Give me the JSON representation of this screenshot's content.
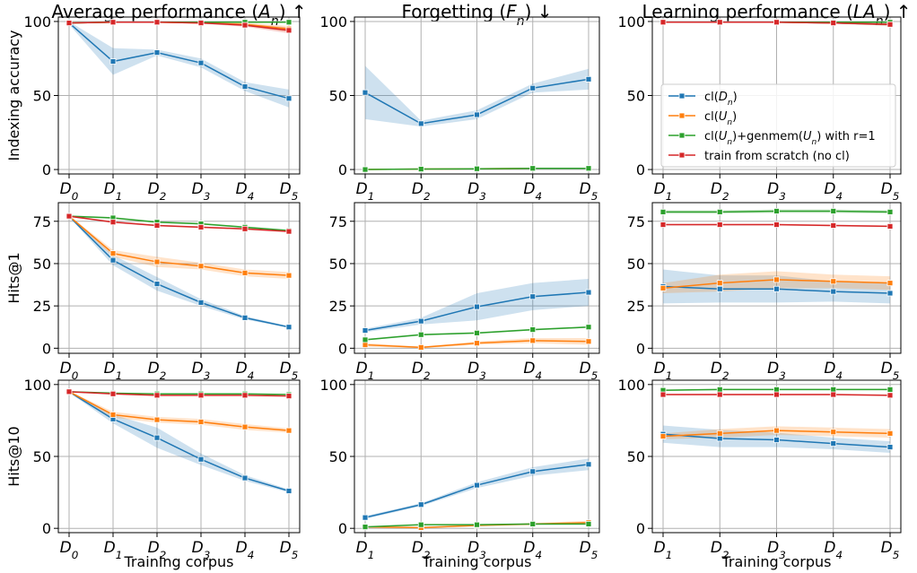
{
  "figure": {
    "column_titles": [
      {
        "pre": "Average performance (",
        "var": "A",
        "sub": "n",
        "post": ") ↑"
      },
      {
        "pre": "Forgetting (",
        "var": "F",
        "sub": "n",
        "post": ") ↓"
      },
      {
        "pre": "Learning performance (",
        "var": "LA",
        "sub": "n",
        "post": ") ↑"
      }
    ],
    "row_labels": [
      "Indexing accuracy",
      "Hits@1",
      "Hits@10"
    ],
    "xlabel": "Training corpus",
    "series_colors": {
      "cl_D": "#1f77b4",
      "cl_U": "#ff7f0e",
      "cl_U_genmem": "#2ca02c",
      "scratch": "#d62728"
    },
    "legend": [
      {
        "key": "cl_D",
        "pre": "cl(",
        "var": "D",
        "sub": "n",
        "post": ")"
      },
      {
        "key": "cl_U",
        "pre": "cl(",
        "var": "U",
        "sub": "n",
        "post": ")"
      },
      {
        "key": "cl_U_genmem",
        "pre": "cl(",
        "var": "U",
        "sub": "n",
        "post": ")+genmem(",
        "var2": "U",
        "sub2": "n",
        "post2": ") with r=1"
      },
      {
        "key": "scratch",
        "pre": "train from scratch (no cl)"
      }
    ]
  },
  "chart_data": [
    {
      "type": "line",
      "row": "Indexing accuracy",
      "column": "Average performance",
      "x": [
        "D0",
        "D1",
        "D2",
        "D3",
        "D4",
        "D5"
      ],
      "ylim": [
        -3,
        103
      ],
      "yticks": [
        0,
        50,
        100
      ],
      "grid": true,
      "series": [
        {
          "key": "cl_D",
          "values": [
            99,
            73,
            79,
            72,
            56,
            48
          ],
          "band": [
            1,
            9,
            2,
            3,
            3,
            6
          ]
        },
        {
          "key": "cl_U",
          "values": [
            99,
            99.5,
            99.5,
            99,
            98,
            95
          ],
          "band": [
            0.3,
            0.3,
            0.3,
            0.5,
            1,
            2
          ]
        },
        {
          "key": "cl_U_genmem",
          "values": [
            99,
            99.5,
            99.5,
            99.5,
            99.5,
            99.5
          ],
          "band": [
            0.2,
            0.2,
            0.2,
            0.2,
            0.2,
            0.2
          ]
        },
        {
          "key": "scratch",
          "values": [
            99,
            99.5,
            99.5,
            99,
            97.5,
            94
          ],
          "band": [
            0.3,
            0.3,
            0.3,
            0.5,
            1,
            2
          ]
        }
      ]
    },
    {
      "type": "line",
      "row": "Indexing accuracy",
      "column": "Forgetting",
      "x": [
        "D1",
        "D2",
        "D3",
        "D4",
        "D5"
      ],
      "ylim": [
        -3,
        103
      ],
      "yticks": [
        0,
        50,
        100
      ],
      "grid": true,
      "series": [
        {
          "key": "cl_D",
          "values": [
            52,
            31,
            37,
            55,
            61
          ],
          "band": [
            18,
            2,
            3,
            3,
            7
          ]
        },
        {
          "key": "cl_U",
          "values": [
            0,
            0.3,
            0.5,
            0.8,
            0.8
          ],
          "band": [
            0.3,
            0.3,
            0.3,
            0.3,
            0.3
          ]
        },
        {
          "key": "cl_U_genmem",
          "values": [
            0,
            0.3,
            0.5,
            0.8,
            0.8
          ],
          "band": [
            0.3,
            0.3,
            0.3,
            0.3,
            0.3
          ]
        }
      ]
    },
    {
      "type": "line",
      "row": "Indexing accuracy",
      "column": "Learning performance",
      "x": [
        "D1",
        "D2",
        "D3",
        "D4",
        "D5"
      ],
      "ylim": [
        -3,
        103
      ],
      "yticks": [
        0,
        50,
        100
      ],
      "grid": true,
      "series": [
        {
          "key": "cl_D",
          "values": [
            99.5,
            99.5,
            99.5,
            99,
            98
          ],
          "band": [
            0.3,
            0.3,
            0.3,
            0.5,
            0.8
          ]
        },
        {
          "key": "cl_U",
          "values": [
            99.5,
            99.5,
            99.5,
            99,
            98
          ],
          "band": [
            0.3,
            0.3,
            0.3,
            0.5,
            0.8
          ]
        },
        {
          "key": "cl_U_genmem",
          "values": [
            99.5,
            99.5,
            99.5,
            99.5,
            99.5
          ],
          "band": [
            0.2,
            0.2,
            0.2,
            0.2,
            0.2
          ]
        },
        {
          "key": "scratch",
          "values": [
            99.5,
            99.5,
            99.5,
            99,
            98
          ],
          "band": [
            0.3,
            0.3,
            0.3,
            0.5,
            0.8
          ]
        }
      ]
    },
    {
      "type": "line",
      "row": "Hits@1",
      "column": "Average performance",
      "x": [
        "D0",
        "D1",
        "D2",
        "D3",
        "D4",
        "D5"
      ],
      "ylim": [
        -3,
        86
      ],
      "yticks": [
        0,
        25,
        50,
        75
      ],
      "grid": true,
      "series": [
        {
          "key": "cl_D",
          "values": [
            78,
            52,
            38,
            27,
            18,
            12.5
          ],
          "band": [
            0.5,
            3,
            4,
            2,
            1,
            0.5
          ]
        },
        {
          "key": "cl_U",
          "values": [
            78,
            56,
            51,
            48.5,
            44.5,
            43
          ],
          "band": [
            0.5,
            2,
            3,
            2,
            2,
            2
          ]
        },
        {
          "key": "cl_U_genmem",
          "values": [
            78,
            77,
            74.5,
            73.5,
            71.5,
            69.5
          ],
          "band": [
            0.5,
            0.5,
            0.5,
            0.5,
            0.5,
            0.5
          ]
        },
        {
          "key": "scratch",
          "values": [
            78,
            74.5,
            72.5,
            71.5,
            70.5,
            69
          ],
          "band": [
            0.5,
            0.5,
            0.5,
            0.5,
            0.5,
            0.5
          ]
        }
      ]
    },
    {
      "type": "line",
      "row": "Hits@1",
      "column": "Forgetting",
      "x": [
        "D1",
        "D2",
        "D3",
        "D4",
        "D5"
      ],
      "ylim": [
        -3,
        86
      ],
      "yticks": [
        0,
        25,
        50,
        75
      ],
      "grid": true,
      "series": [
        {
          "key": "cl_D",
          "values": [
            10.5,
            16,
            24.5,
            30.5,
            33
          ],
          "band": [
            1,
            2,
            8,
            8,
            8
          ]
        },
        {
          "key": "cl_U",
          "values": [
            2,
            0.5,
            3,
            4.5,
            4
          ],
          "band": [
            1,
            0.5,
            1,
            1.5,
            2
          ]
        },
        {
          "key": "cl_U_genmem",
          "values": [
            5,
            8,
            9,
            11,
            12.5
          ],
          "band": [
            0.5,
            0.5,
            0.5,
            0.5,
            0.5
          ]
        }
      ]
    },
    {
      "type": "line",
      "row": "Hits@1",
      "column": "Learning performance",
      "x": [
        "D1",
        "D2",
        "D3",
        "D4",
        "D5"
      ],
      "ylim": [
        -3,
        86
      ],
      "yticks": [
        0,
        25,
        50,
        75
      ],
      "grid": true,
      "series": [
        {
          "key": "cl_D",
          "values": [
            36.5,
            35,
            35,
            33.5,
            32.5
          ],
          "band": [
            10,
            8,
            8,
            6,
            6
          ]
        },
        {
          "key": "cl_U",
          "values": [
            35.5,
            38.5,
            40.5,
            39.5,
            38.5
          ],
          "band": [
            3,
            5,
            5,
            4,
            4
          ]
        },
        {
          "key": "cl_U_genmem",
          "values": [
            80.5,
            80.5,
            81,
            81,
            80.5
          ],
          "band": [
            1,
            1,
            1,
            1,
            1
          ]
        },
        {
          "key": "scratch",
          "values": [
            73,
            73,
            73,
            72.5,
            72
          ],
          "band": [
            0.5,
            0.5,
            0.5,
            0.5,
            0.5
          ]
        }
      ]
    },
    {
      "type": "line",
      "row": "Hits@10",
      "column": "Average performance",
      "x": [
        "D0",
        "D1",
        "D2",
        "D3",
        "D4",
        "D5"
      ],
      "ylim": [
        -3,
        103
      ],
      "yticks": [
        0,
        50,
        100
      ],
      "grid": true,
      "series": [
        {
          "key": "cl_D",
          "values": [
            95,
            76,
            63,
            48,
            35,
            26
          ],
          "band": [
            0.5,
            3,
            7,
            4,
            2,
            1
          ]
        },
        {
          "key": "cl_U",
          "values": [
            95,
            79,
            75.5,
            74,
            70.5,
            68
          ],
          "band": [
            0.5,
            2,
            2,
            2,
            2,
            1.5
          ]
        },
        {
          "key": "cl_U_genmem",
          "values": [
            95,
            94,
            93.5,
            93.5,
            93.5,
            93
          ],
          "band": [
            0.3,
            0.3,
            0.3,
            0.3,
            0.3,
            0.3
          ]
        },
        {
          "key": "scratch",
          "values": [
            95,
            93.5,
            92.5,
            92.5,
            92.5,
            92
          ],
          "band": [
            0.3,
            0.3,
            0.3,
            0.3,
            0.3,
            0.3
          ]
        }
      ]
    },
    {
      "type": "line",
      "row": "Hits@10",
      "column": "Forgetting",
      "x": [
        "D1",
        "D2",
        "D3",
        "D4",
        "D5"
      ],
      "ylim": [
        -3,
        103
      ],
      "yticks": [
        0,
        50,
        100
      ],
      "grid": true,
      "series": [
        {
          "key": "cl_D",
          "values": [
            7.5,
            16.5,
            30,
            39.5,
            44.5
          ],
          "band": [
            1,
            1,
            2,
            3,
            4
          ]
        },
        {
          "key": "cl_U",
          "values": [
            1,
            0.5,
            2,
            3,
            4
          ],
          "band": [
            0.5,
            0.5,
            0.5,
            0.8,
            1.2
          ]
        },
        {
          "key": "cl_U_genmem",
          "values": [
            1,
            2.5,
            2.5,
            3,
            3
          ],
          "band": [
            0.3,
            0.3,
            0.3,
            0.3,
            0.3
          ]
        }
      ]
    },
    {
      "type": "line",
      "row": "Hits@10",
      "column": "Learning performance",
      "x": [
        "D1",
        "D2",
        "D3",
        "D4",
        "D5"
      ],
      "ylim": [
        -3,
        103
      ],
      "yticks": [
        0,
        50,
        100
      ],
      "grid": true,
      "series": [
        {
          "key": "cl_D",
          "values": [
            65.5,
            62.5,
            61.5,
            59,
            56.5
          ],
          "band": [
            6,
            6,
            5,
            4,
            4
          ]
        },
        {
          "key": "cl_U",
          "values": [
            64,
            66,
            68,
            67,
            66
          ],
          "band": [
            2,
            3,
            3,
            3,
            3
          ]
        },
        {
          "key": "cl_U_genmem",
          "values": [
            96,
            96.5,
            96.5,
            96.5,
            96.5
          ],
          "band": [
            0.5,
            0.5,
            0.5,
            0.5,
            0.5
          ]
        },
        {
          "key": "scratch",
          "values": [
            93,
            93,
            93,
            93,
            92.5
          ],
          "band": [
            0.5,
            0.5,
            0.5,
            0.5,
            0.5
          ]
        }
      ]
    }
  ]
}
